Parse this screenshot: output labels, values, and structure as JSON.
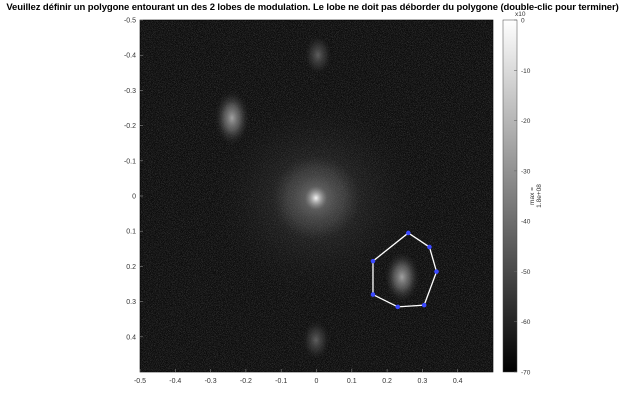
{
  "prompt": "Veuillez définir un polygone entourant un des 2 lobes de modulation. Le lobe ne doit pas déborder du polygone (double-clic pour terminer)",
  "plot": {
    "xticks": [
      "-0.5",
      "-0.4",
      "-0.3",
      "-0.2",
      "-0.1",
      "0",
      "0.1",
      "0.2",
      "0.3",
      "0.4"
    ],
    "yticks": [
      "-0.5",
      "-0.4",
      "-0.3",
      "-0.2",
      "-0.1",
      "0",
      "0.1",
      "0.2",
      "0.3",
      "0.4"
    ]
  },
  "colorbar": {
    "ticks": [
      "0",
      "-10",
      "-20",
      "-30",
      "-40",
      "-50",
      "-60",
      "-70"
    ],
    "exponent": "x10",
    "max_label_1": "max =",
    "max_label_2": "1.8e+08"
  },
  "polygon_vertices": [
    [
      0.26,
      0.105
    ],
    [
      0.32,
      0.145
    ],
    [
      0.34,
      0.215
    ],
    [
      0.305,
      0.31
    ],
    [
      0.23,
      0.315
    ],
    [
      0.16,
      0.28
    ],
    [
      0.16,
      0.185
    ]
  ],
  "colors": {
    "polygon_line": "#ffffff",
    "vertex": "#3b49ff",
    "background": "#0a0a0a"
  }
}
